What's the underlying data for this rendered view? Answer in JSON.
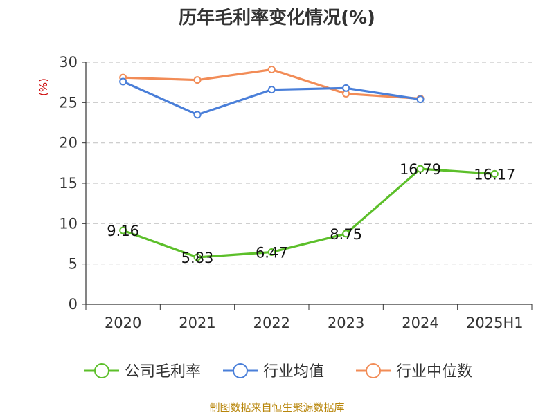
{
  "chart_data": {
    "type": "line",
    "title": "历年毛利率变化情况(%)",
    "ylabel": "(%)",
    "categories": [
      "2020",
      "2021",
      "2022",
      "2023",
      "2024",
      "2025H1"
    ],
    "ylim": [
      0,
      30
    ],
    "yticks": [
      0,
      5,
      10,
      15,
      20,
      25,
      30
    ],
    "grid": "horizontal dashed",
    "legend_position": "bottom",
    "series": [
      {
        "name": "公司毛利率",
        "color": "#5cbf2a",
        "values": [
          9.16,
          5.83,
          6.47,
          8.75,
          16.79,
          16.17
        ],
        "labels": [
          "9.16",
          "5.83",
          "6.47",
          "8.75",
          "16.79",
          "16.17"
        ]
      },
      {
        "name": "行业均值",
        "color": "#4a7fd9",
        "values": [
          27.6,
          23.5,
          26.6,
          26.8,
          25.4,
          null
        ]
      },
      {
        "name": "行业中位数",
        "color": "#f28c57",
        "values": [
          28.1,
          27.8,
          29.1,
          26.1,
          25.5,
          null
        ]
      }
    ]
  },
  "source": "制图数据来自恒生聚源数据库"
}
